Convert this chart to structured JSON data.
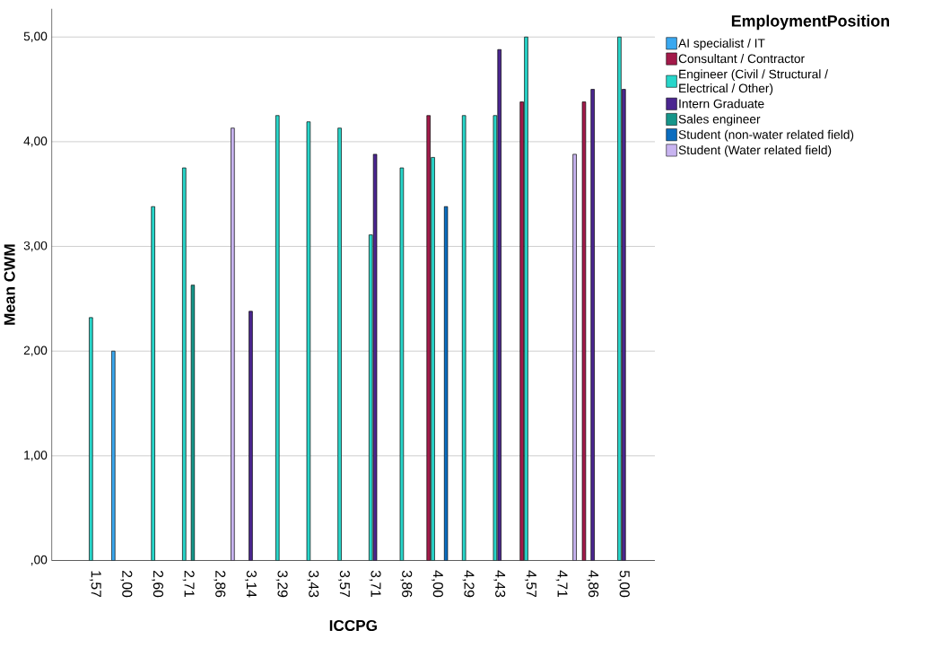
{
  "chart_data": {
    "type": "bar",
    "xlabel": "ICCPG",
    "ylabel": "Mean CWM",
    "legend_title": "EmploymentPosition",
    "categories": [
      "1,57",
      "2,00",
      "2,60",
      "2,71",
      "2,86",
      "3,14",
      "3,29",
      "3,43",
      "3,57",
      "3,71",
      "3,86",
      "4,00",
      "4,29",
      "4,43",
      "4,57",
      "4,71",
      "4,86",
      "5,00"
    ],
    "series": [
      {
        "name": "AI specialist / IT",
        "color": "#3aa8f0",
        "values": [
          null,
          2.0,
          null,
          null,
          null,
          null,
          null,
          null,
          null,
          null,
          null,
          null,
          null,
          null,
          null,
          null,
          null,
          null
        ]
      },
      {
        "name": "Consultant / Contractor",
        "color": "#a31a4a",
        "values": [
          null,
          null,
          null,
          null,
          null,
          null,
          null,
          null,
          null,
          null,
          null,
          4.25,
          null,
          null,
          4.38,
          null,
          4.38,
          null
        ]
      },
      {
        "name": "Engineer (Civil / Structural / Electrical / Other)",
        "color": "#28d6ca",
        "values": [
          2.32,
          null,
          3.38,
          3.75,
          null,
          null,
          4.25,
          4.19,
          4.13,
          3.11,
          3.75,
          3.85,
          4.25,
          4.25,
          5.0,
          null,
          null,
          5.0
        ]
      },
      {
        "name": "Intern Graduate",
        "color": "#4b2690",
        "values": [
          null,
          null,
          null,
          null,
          null,
          2.38,
          null,
          null,
          null,
          3.88,
          null,
          null,
          null,
          4.88,
          null,
          null,
          4.5,
          4.5
        ]
      },
      {
        "name": "Sales engineer",
        "color": "#16968a",
        "values": [
          null,
          null,
          null,
          2.63,
          null,
          null,
          null,
          null,
          null,
          null,
          null,
          null,
          null,
          null,
          null,
          null,
          null,
          null
        ]
      },
      {
        "name": "Student (non-water related field)",
        "color": "#0b6dbf",
        "values": [
          null,
          null,
          null,
          null,
          null,
          null,
          null,
          null,
          null,
          null,
          null,
          3.38,
          null,
          null,
          null,
          null,
          null,
          null
        ]
      },
      {
        "name": "Student (Water related field)",
        "color": "#c8b4f0",
        "values": [
          null,
          null,
          null,
          null,
          4.13,
          null,
          null,
          null,
          null,
          null,
          null,
          null,
          null,
          null,
          null,
          3.88,
          null,
          null
        ]
      }
    ],
    "ylim": [
      0,
      5.27
    ],
    "yticks": [
      {
        "value": 0,
        "label": ",00"
      },
      {
        "value": 1,
        "label": "1,00"
      },
      {
        "value": 2,
        "label": "2,00"
      },
      {
        "value": 3,
        "label": "3,00"
      },
      {
        "value": 4,
        "label": "4,00"
      },
      {
        "value": 5,
        "label": "5,00"
      }
    ],
    "grid": "y",
    "legend": "right"
  }
}
